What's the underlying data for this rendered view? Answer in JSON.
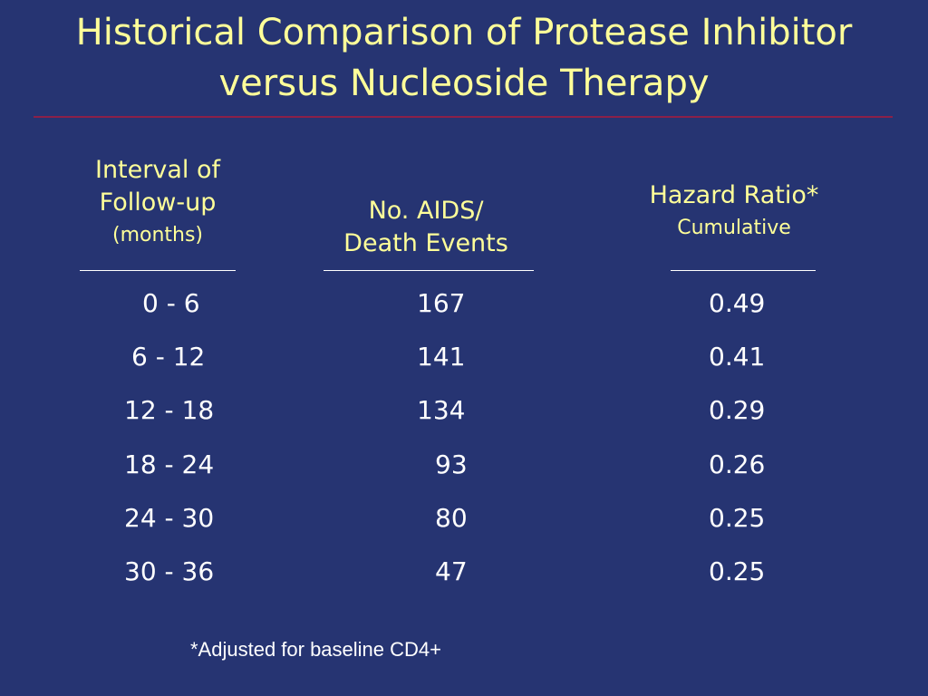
{
  "slide": {
    "title_line1": "Historical Comparison of Protease Inhibitor",
    "title_line2": "versus Nucleoside Therapy"
  },
  "table": {
    "headers": {
      "interval": {
        "line1": "Interval of",
        "line2": "Follow-up",
        "line3": "(months)"
      },
      "events": {
        "line1": "No. AIDS/",
        "line2": "Death Events"
      },
      "hazard": {
        "line1": "Hazard Ratio*",
        "line2": "Cumulative"
      }
    },
    "rows": [
      {
        "interval": "0 - 6",
        "events": "167",
        "hazard": "0.49"
      },
      {
        "interval": "6 - 12",
        "events": "141",
        "hazard": "0.41"
      },
      {
        "interval": "12 - 18",
        "events": "134",
        "hazard": "0.29"
      },
      {
        "interval": "18 - 24",
        "events": "93",
        "hazard": "0.26"
      },
      {
        "interval": "24 - 30",
        "events": "80",
        "hazard": "0.25"
      },
      {
        "interval": "30 - 36",
        "events": "47",
        "hazard": "0.25"
      }
    ]
  },
  "footnote": "*Adjusted for baseline CD4+",
  "colors": {
    "background": "#263472",
    "title_text": "#FFFF99",
    "body_text": "#FFFFFF",
    "title_rule": "#8B2049"
  }
}
